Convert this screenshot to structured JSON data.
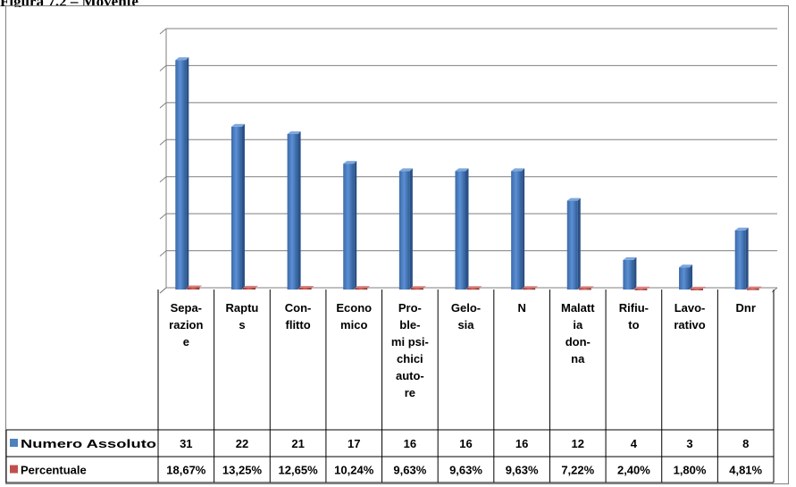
{
  "caption": "Figura 7.2 – Movente",
  "chart_data": {
    "type": "bar",
    "categories": [
      [
        "Sepa-",
        "razion",
        "e"
      ],
      [
        "Raptu",
        "s"
      ],
      [
        "Con-",
        "flitto"
      ],
      [
        "Econo",
        "mico"
      ],
      [
        "Pro-",
        "ble-",
        "mi psi-",
        "chici",
        "auto-",
        "re"
      ],
      [
        "Gelo-",
        "sia"
      ],
      [
        "N"
      ],
      [
        "Malatt",
        "ia",
        "don-",
        "na"
      ],
      [
        "Rifiu-",
        "to"
      ],
      [
        "Lavo-",
        "rativo"
      ],
      [
        "Dnr"
      ]
    ],
    "series": [
      {
        "name": "Numero Assoluto",
        "color": "#4f81bd",
        "values": [
          31,
          22,
          21,
          17,
          16,
          16,
          16,
          12,
          4,
          3,
          8
        ],
        "labels": [
          "31",
          "22",
          "21",
          "17",
          "16",
          "16",
          "16",
          "12",
          "4",
          "3",
          "8"
        ]
      },
      {
        "name": "Percentuale",
        "color": "#c0504d",
        "values": [
          18.67,
          13.25,
          12.65,
          10.24,
          9.63,
          9.63,
          9.63,
          7.22,
          2.4,
          1.8,
          4.81
        ],
        "labels": [
          "18,67%",
          "13,25%",
          "12,65%",
          "10,24%",
          "9,63%",
          "9,63%",
          "9,63%",
          "7,22%",
          "2,40%",
          "1,80%",
          "4,81%"
        ]
      }
    ],
    "ylim": [
      0,
      35
    ],
    "grid": true,
    "legend": "table-left",
    "colors": {
      "gridline": "#7f7f7f",
      "border": "#000000"
    }
  }
}
